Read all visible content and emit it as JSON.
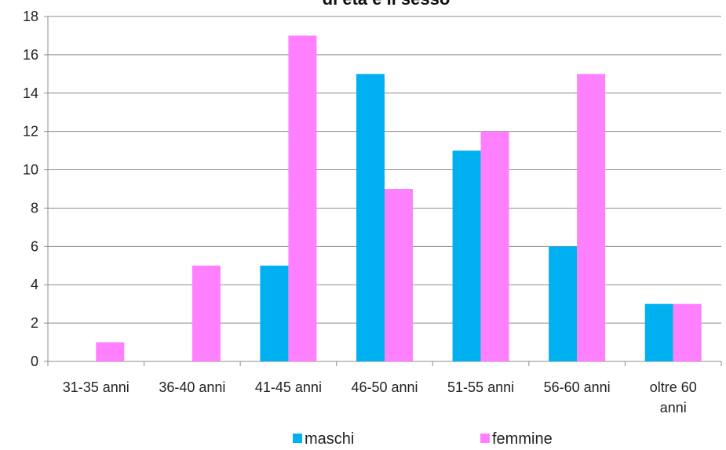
{
  "chart_data": {
    "type": "bar",
    "title": "di età e il sesso",
    "xlabel": "",
    "ylabel": "",
    "categories": [
      "31-35 anni",
      "36-40 anni",
      "41-45 anni",
      "46-50 anni",
      "51-55 anni",
      "56-60 anni",
      "oltre 60 anni"
    ],
    "series": [
      {
        "name": "maschi",
        "values": [
          0,
          0,
          5,
          15,
          11,
          6,
          3
        ],
        "color": "#00b0f0"
      },
      {
        "name": "femmine",
        "values": [
          1,
          5,
          17,
          9,
          12,
          15,
          3
        ],
        "color": "#ff80ff"
      }
    ],
    "ylim": [
      0,
      18
    ],
    "yticks": [
      0,
      2,
      4,
      6,
      8,
      10,
      12,
      14,
      16,
      18
    ],
    "grid": true,
    "legend": "bottom"
  }
}
